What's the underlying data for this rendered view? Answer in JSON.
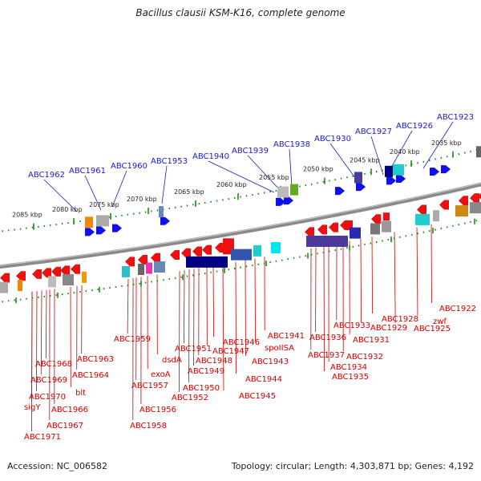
{
  "title": "Bacillus clausii KSM-K16, complete genome",
  "footer": {
    "accession": "Accession: NC_006582",
    "topology": "Topology: circular; Length: 4,303,871 bp; Genes: 4,192"
  },
  "scale_labels": [
    "2085 kbp",
    "2080 kbp",
    "2075 kbp",
    "2070 kbp",
    "2065 kbp",
    "2060 kbp",
    "2055 kbp",
    "2050 kbp",
    "2045 kbp",
    "2040 kbp",
    "2035 kbp"
  ],
  "top_genes": [
    "ABC1962",
    "ABC1961",
    "ABC1960",
    "ABC1953",
    "ABC1940",
    "ABC1939",
    "ABC1938",
    "ABC1930",
    "ABC1927",
    "ABC1926",
    "ABC1923"
  ],
  "bottom_genes": [
    "ABC1971",
    "sigY",
    "ABC1970",
    "ABC1969",
    "ABC1968",
    "ABC1967",
    "ABC1966",
    "blt",
    "ABC1964",
    "ABC1963",
    "ABC1959",
    "ABC1958",
    "ABC1957",
    "ABC1956",
    "exoA",
    "dsdA",
    "ABC1952",
    "ABC1951",
    "ABC1950",
    "ABC1949",
    "ABC1948",
    "ABC1947",
    "ABC1946",
    "ABC1945",
    "ABC1944",
    "ABC1943",
    "spoIISA",
    "ABC1941",
    "ABC1937",
    "ABC1936",
    "ABC1935",
    "ABC1934",
    "ABC1933",
    "ABC1932",
    "ABC1931",
    "ABC1929",
    "ABC1928",
    "ABC1925",
    "zwf",
    "ABC1922"
  ],
  "colors": {
    "forward_strand": "#1010e8",
    "reverse_strand": "#ee1010",
    "label_top": "#1a1acc",
    "label_bottom": "#d00000",
    "tick": "#1a8a1a",
    "backbone": "#8a8a8a"
  }
}
